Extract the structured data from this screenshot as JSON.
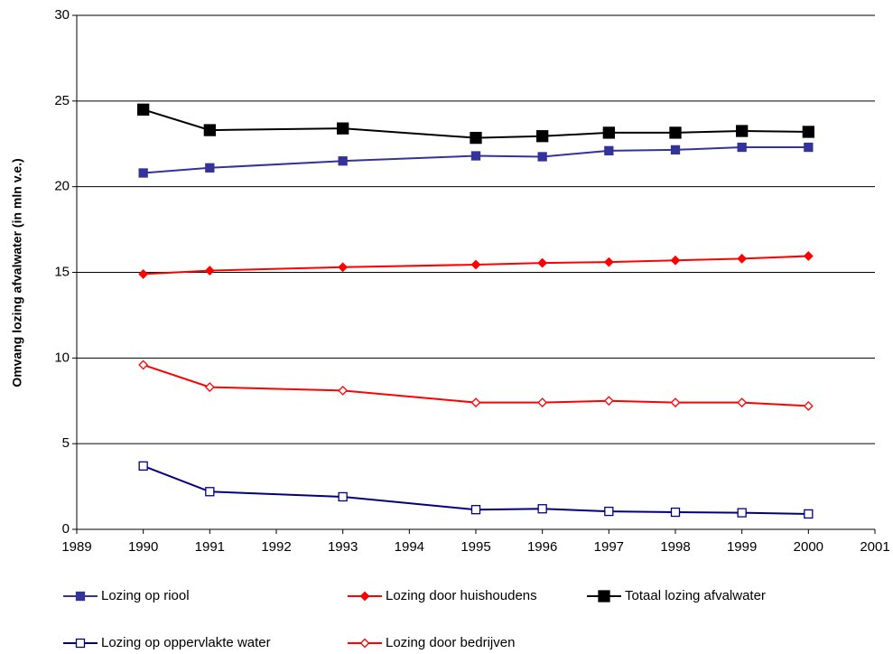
{
  "chart_data": {
    "type": "line",
    "y_label": "Omvang lozing afvalwater (in mln v.e.)",
    "x": [
      1990,
      1991,
      1993,
      1995,
      1996,
      1997,
      1998,
      1999,
      2000
    ],
    "xlim": [
      1989,
      2001
    ],
    "xticks": [
      1989,
      1990,
      1991,
      1992,
      1993,
      1994,
      1995,
      1996,
      1997,
      1998,
      1999,
      2000,
      2001
    ],
    "ylim": [
      0,
      30
    ],
    "yticks": [
      0,
      5,
      10,
      15,
      20,
      25,
      30
    ],
    "grid": true,
    "series": [
      {
        "name": "Lozing op riool",
        "color": "#333399",
        "marker": "square",
        "marker_filled": true,
        "marker_size": 9,
        "values": [
          20.8,
          21.1,
          21.5,
          21.8,
          21.75,
          22.1,
          22.15,
          22.3,
          22.3
        ]
      },
      {
        "name": "Lozing door huishoudens",
        "color": "#ff0000",
        "marker": "diamond",
        "marker_filled": true,
        "marker_size": 9,
        "values": [
          14.9,
          15.1,
          15.3,
          15.45,
          15.55,
          15.6,
          15.7,
          15.8,
          15.95
        ]
      },
      {
        "name": "Totaal lozing afvalwater",
        "color": "#000000",
        "marker": "square",
        "marker_filled": true,
        "marker_size": 12,
        "values": [
          24.5,
          23.3,
          23.4,
          22.85,
          22.95,
          23.15,
          23.15,
          23.25,
          23.2
        ]
      },
      {
        "name": "Lozing op oppervlakte water",
        "color": "#000080",
        "marker": "square",
        "marker_filled": false,
        "marker_size": 9,
        "values": [
          3.7,
          2.2,
          1.9,
          1.15,
          1.2,
          1.05,
          1.0,
          0.97,
          0.9
        ]
      },
      {
        "name": "Lozing door bedrijven",
        "color": "#ff0000",
        "marker": "diamond",
        "marker_filled": false,
        "marker_size": 9,
        "values": [
          9.6,
          8.3,
          8.1,
          7.4,
          7.4,
          7.5,
          7.4,
          7.4,
          7.2
        ]
      }
    ]
  }
}
